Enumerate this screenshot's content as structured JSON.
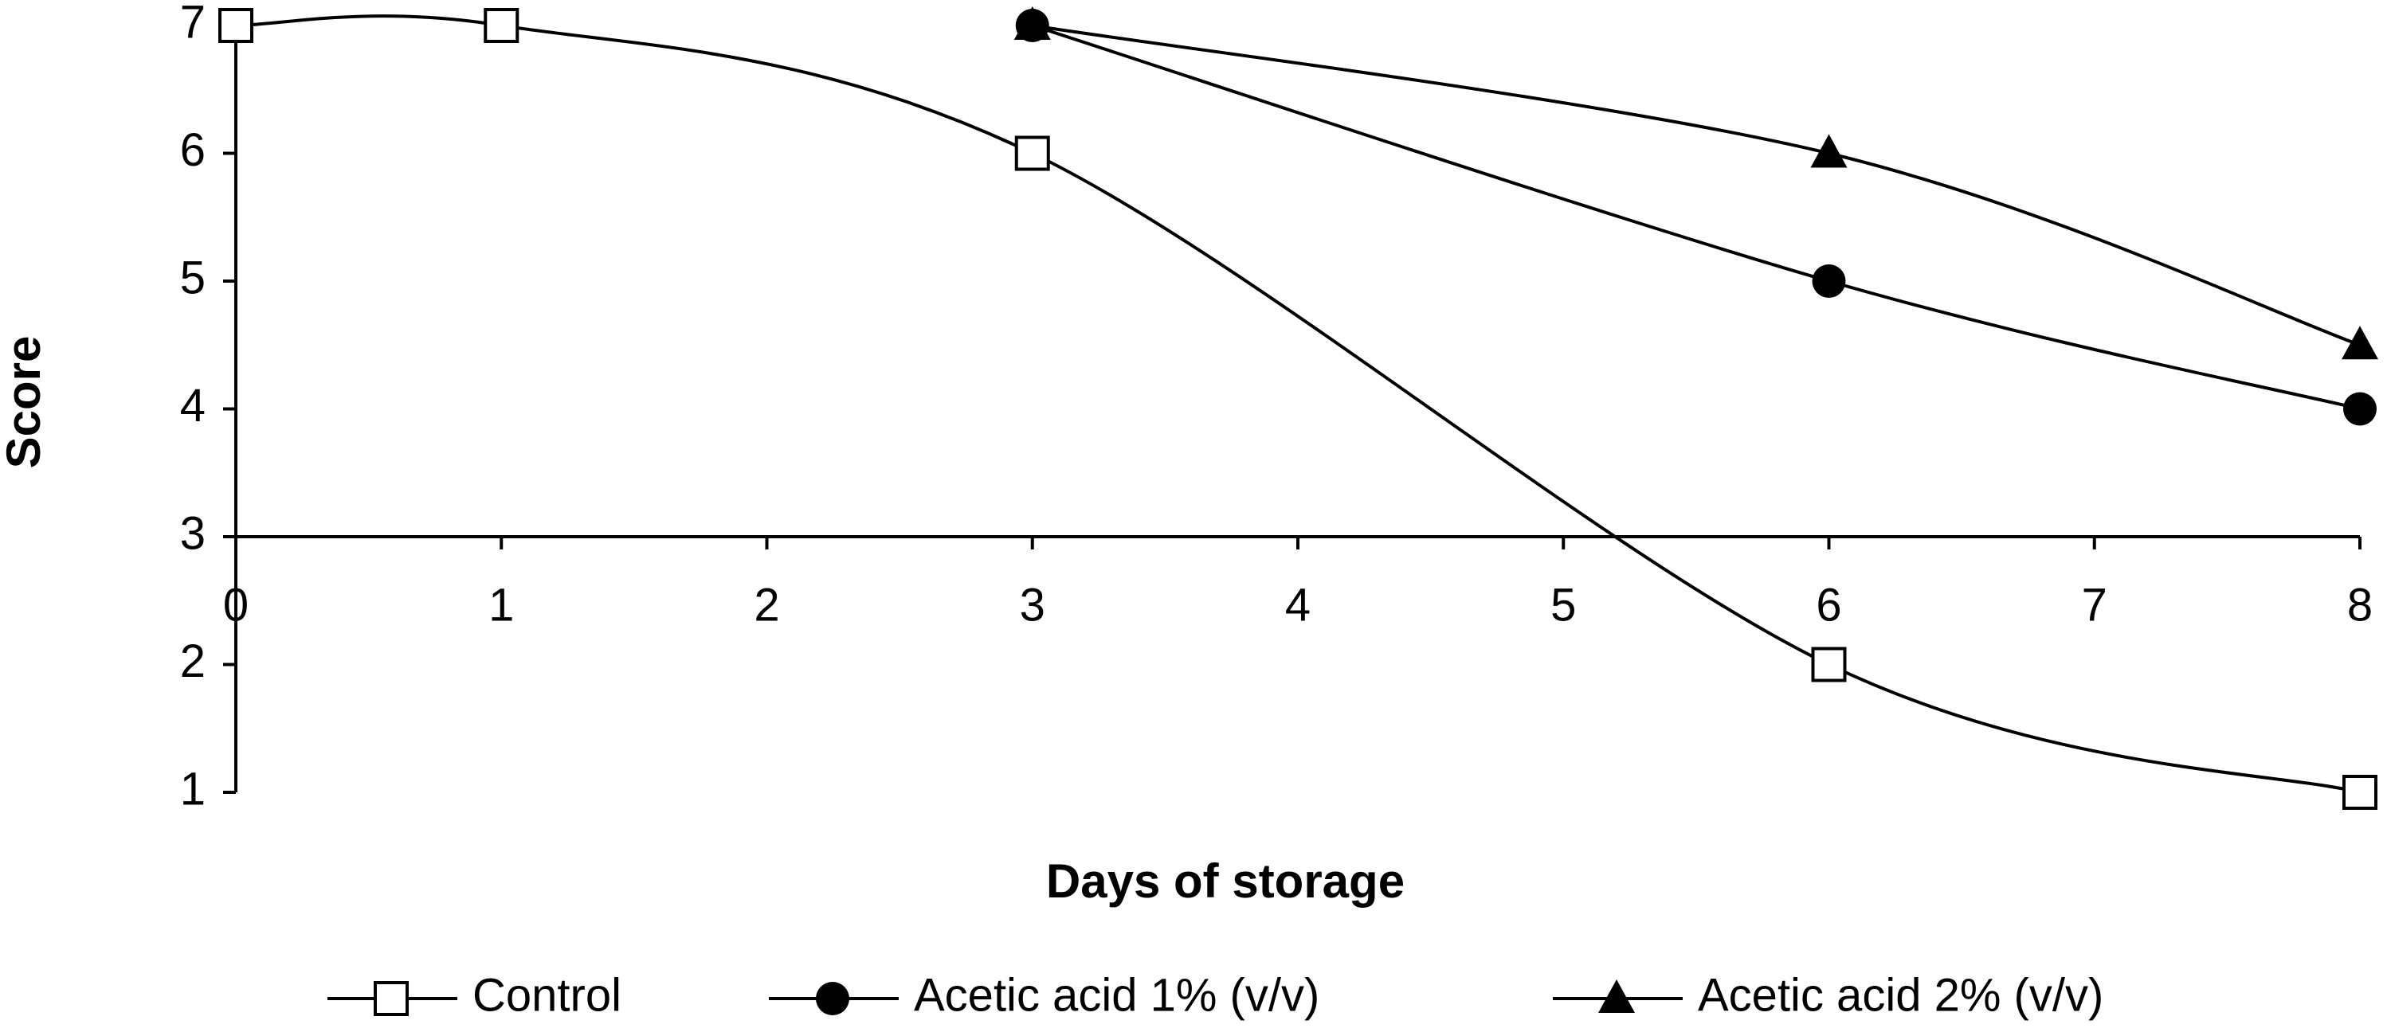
{
  "chart_data": {
    "type": "line",
    "x_label": "Days of storage",
    "y_label": "Score",
    "x": [
      0,
      1,
      3,
      6,
      8
    ],
    "series": [
      {
        "name": "Control",
        "color": "#000000",
        "marker": "square-open",
        "values": [
          7,
          7,
          6,
          2,
          1
        ]
      },
      {
        "name": "Acetic acid 1% (v/v)",
        "color": "#000000",
        "marker": "circle",
        "values": [
          null,
          null,
          7,
          5,
          4
        ]
      },
      {
        "name": "Acetic acid 2% (v/v)",
        "color": "#000000",
        "marker": "triangle",
        "values": [
          null,
          null,
          7,
          6,
          4.5
        ]
      }
    ],
    "xlim": [
      0,
      8
    ],
    "ylim": [
      1,
      7
    ],
    "xticks": [
      0,
      1,
      2,
      3,
      4,
      5,
      6,
      7,
      8
    ],
    "yticks": [
      1,
      2,
      3,
      4,
      5,
      6,
      7
    ],
    "x_axis_crossing": 3,
    "smooth": true,
    "legend": "bottom"
  }
}
